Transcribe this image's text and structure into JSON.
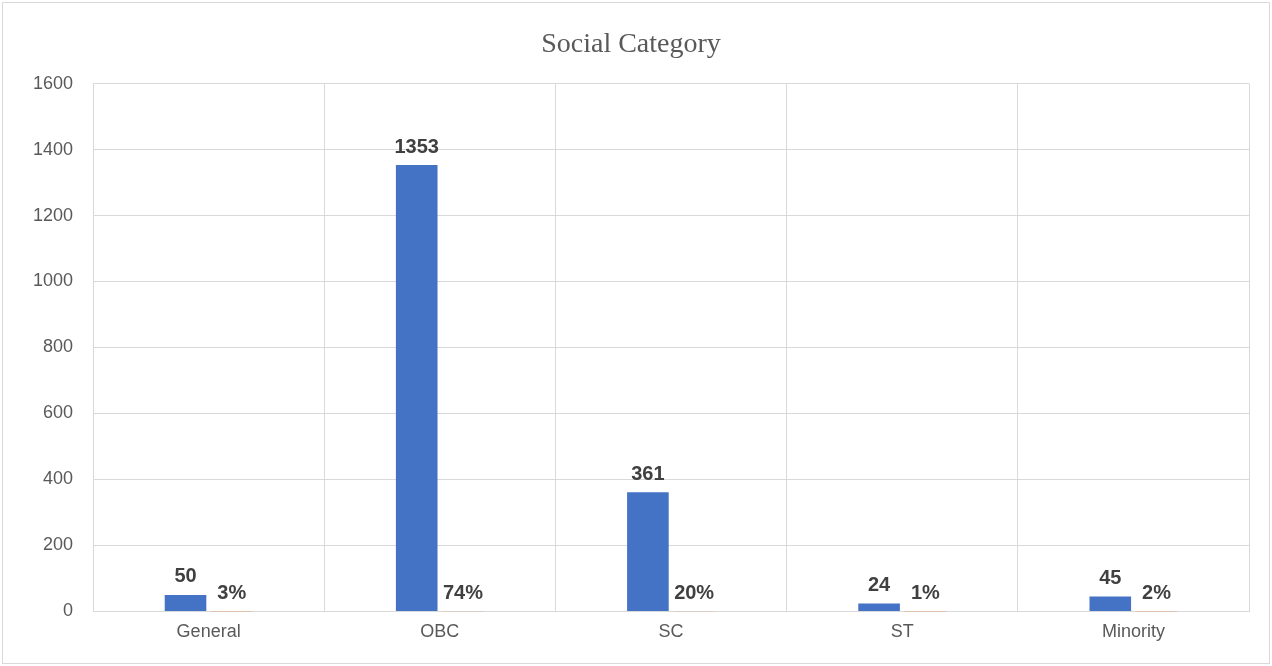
{
  "chart_data": {
    "type": "bar",
    "title": "Social Category",
    "categories": [
      "General",
      "OBC",
      "SC",
      "ST",
      "Minority"
    ],
    "series": [
      {
        "color": "#4472c4",
        "values": [
          50,
          1353,
          361,
          24,
          45
        ],
        "value_labels": [
          "50",
          "1353",
          "361",
          "24",
          "45"
        ]
      },
      {
        "color": "#ed7d31",
        "values": [
          0.03,
          0.74,
          0.2,
          0.01,
          0.02
        ],
        "value_labels": [
          "3%",
          "74%",
          "20%",
          "1%",
          "2%"
        ]
      }
    ],
    "ylim": [
      0,
      1600
    ],
    "yticks": [
      0,
      200,
      400,
      600,
      800,
      1000,
      1200,
      1400,
      1600
    ],
    "grid": true,
    "legend": false
  }
}
